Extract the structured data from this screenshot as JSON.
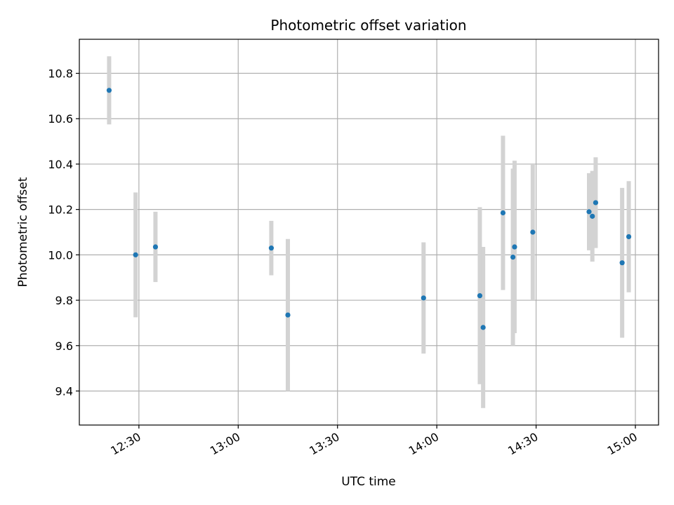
{
  "chart_data": {
    "type": "scatter",
    "title": "Photometric offset variation",
    "xlabel": "UTC time",
    "ylabel": "Photometric offset",
    "xlim": [
      "12:12",
      "15:07"
    ],
    "ylim": [
      9.25,
      10.95
    ],
    "x_ticks": [
      "12:30",
      "13:00",
      "13:30",
      "14:00",
      "14:30",
      "15:00"
    ],
    "y_ticks": [
      9.4,
      9.6,
      9.8,
      10.0,
      10.2,
      10.4,
      10.6,
      10.8
    ],
    "grid": true,
    "colors": {
      "point": "#1f77b4",
      "errorbar": "#d3d3d3",
      "grid": "#b0b0b0"
    },
    "points": [
      {
        "x": "12:21",
        "y": 10.725,
        "err": 0.15
      },
      {
        "x": "12:29",
        "y": 10.0,
        "err": 0.275
      },
      {
        "x": "12:35",
        "y": 10.035,
        "err": 0.155
      },
      {
        "x": "13:10",
        "y": 10.03,
        "err": 0.12
      },
      {
        "x": "13:15",
        "y": 9.735,
        "err": 0.335
      },
      {
        "x": "13:56",
        "y": 9.81,
        "err": 0.245
      },
      {
        "x": "14:13",
        "y": 9.82,
        "err": 0.39
      },
      {
        "x": "14:14",
        "y": 9.68,
        "err": 0.355
      },
      {
        "x": "14:20",
        "y": 10.185,
        "err": 0.34
      },
      {
        "x": "14:23",
        "y": 9.99,
        "err": 0.39
      },
      {
        "x": "14:23.5",
        "y": 10.035,
        "err": 0.38
      },
      {
        "x": "14:29",
        "y": 10.1,
        "err": 0.3
      },
      {
        "x": "14:46",
        "y": 10.19,
        "err": 0.17
      },
      {
        "x": "14:47",
        "y": 10.17,
        "err": 0.2
      },
      {
        "x": "14:48",
        "y": 10.23,
        "err": 0.2
      },
      {
        "x": "14:56",
        "y": 9.965,
        "err": 0.33
      },
      {
        "x": "14:58",
        "y": 10.08,
        "err": 0.245
      }
    ]
  }
}
